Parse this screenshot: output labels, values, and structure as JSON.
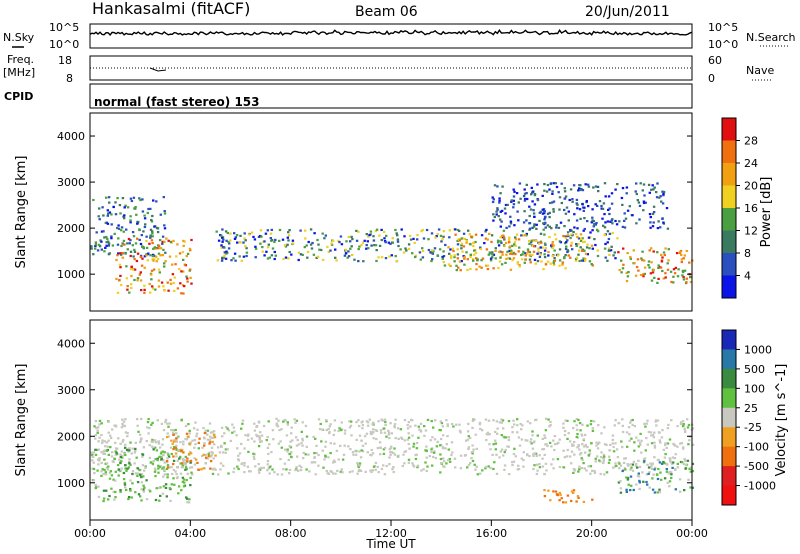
{
  "header": {
    "station": "Hankasalmi (fitACF)",
    "beam": "Beam 06",
    "date": "20/Jun/2011"
  },
  "noise_panel": {
    "left_label": "N.Sky",
    "left_ticks": [
      "10^5",
      "10^0"
    ],
    "right_label": "N.Search",
    "right_ticks": [
      "10^5",
      "10^0"
    ]
  },
  "freq_panel": {
    "left_label": "Freq.",
    "left_unit": "[MHz]",
    "left_ticks": [
      "18",
      "8"
    ],
    "right_label": "Nave",
    "right_ticks": [
      "60",
      "0"
    ]
  },
  "cpid": {
    "label": "CPID",
    "value": "normal (fast stereo) 153"
  },
  "x_axis": {
    "label": "Time UT",
    "ticks": [
      "00:00",
      "04:00",
      "08:00",
      "12:00",
      "16:00",
      "20:00",
      "00:00"
    ]
  },
  "colors": {
    "power": [
      "#0a14e8",
      "#2a50c0",
      "#3a7a60",
      "#4aa040",
      "#f0d020",
      "#f0a010",
      "#f07010",
      "#e01010"
    ],
    "velocity": [
      "#1a28b8",
      "#2878a8",
      "#3a8a40",
      "#60c040",
      "#c8c8c0",
      "#f0a020",
      "#f07010",
      "#e02020",
      "#f01010"
    ]
  },
  "chart_data": [
    {
      "type": "heatmap",
      "title": "",
      "xlabel": "Time UT",
      "ylabel": "Slant Range [km]",
      "xlim": [
        "00:00",
        "24:00"
      ],
      "ylim": [
        200,
        4500
      ],
      "y_ticks": [
        "1000",
        "2000",
        "3000",
        "4000"
      ],
      "colorbar": {
        "label": "Power [dB]",
        "ticks": [
          "4",
          "8",
          "12",
          "16",
          "20",
          "24",
          "28"
        ],
        "range": [
          0,
          30
        ]
      },
      "scatter_regions": [
        {
          "hours": [
            0,
            3
          ],
          "range_km": [
            1400,
            2700
          ],
          "value_db": "8–20"
        },
        {
          "hours": [
            1,
            4
          ],
          "range_km": [
            600,
            1800
          ],
          "value_db": "16–30"
        },
        {
          "hours": [
            5,
            21
          ],
          "range_km": [
            1300,
            2000
          ],
          "value_db": "8–24"
        },
        {
          "hours": [
            14,
            20
          ],
          "range_km": [
            1100,
            1900
          ],
          "value_db": "12–26"
        },
        {
          "hours": [
            16,
            23
          ],
          "range_km": [
            2000,
            3000
          ],
          "value_db": "4–12"
        },
        {
          "hours": [
            21,
            24
          ],
          "range_km": [
            800,
            1600
          ],
          "value_db": "12–28"
        }
      ]
    },
    {
      "type": "heatmap",
      "title": "",
      "xlabel": "Time UT",
      "ylabel": "Slant Range [km]",
      "xlim": [
        "00:00",
        "24:00"
      ],
      "ylim": [
        200,
        4500
      ],
      "y_ticks": [
        "1000",
        "2000",
        "3000",
        "4000"
      ],
      "colorbar": {
        "label": "Velocity [m s^-1]",
        "ticks": [
          "1000",
          "500",
          "100",
          "25",
          "-25",
          "-100",
          "-500",
          "-1000"
        ],
        "range": [
          -1000,
          1000
        ]
      },
      "scatter_regions": [
        {
          "hours": [
            0,
            24
          ],
          "range_km": [
            1200,
            2400
          ],
          "value_ms": "-25 to 25"
        },
        {
          "hours": [
            0,
            4
          ],
          "range_km": [
            600,
            1800
          ],
          "value_ms": "25 to 500"
        },
        {
          "hours": [
            3,
            5
          ],
          "range_km": [
            1300,
            2100
          ],
          "value_ms": "-500 to -100"
        },
        {
          "hours": [
            18,
            20
          ],
          "range_km": [
            600,
            900
          ],
          "value_ms": "-500 to -100"
        },
        {
          "hours": [
            21,
            24
          ],
          "range_km": [
            800,
            1500
          ],
          "value_ms": "100 to 1000"
        }
      ]
    }
  ]
}
